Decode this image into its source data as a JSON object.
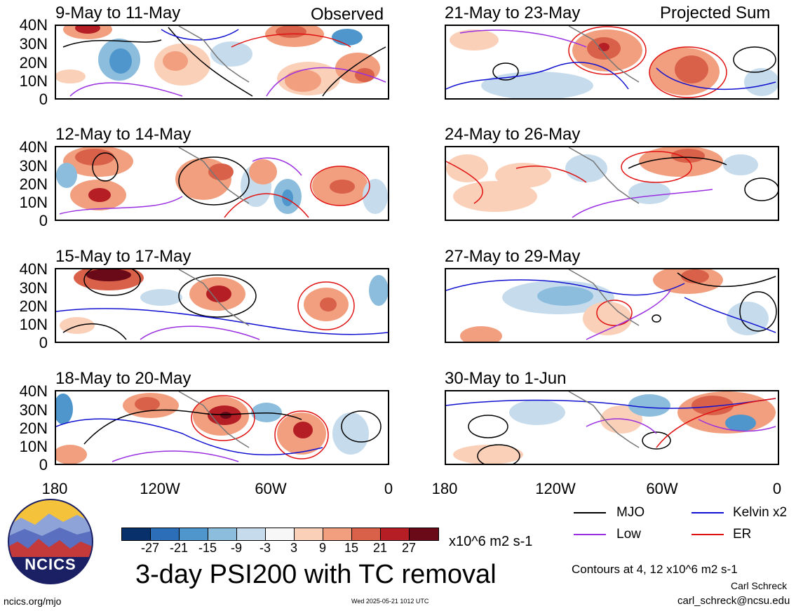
{
  "panels": {
    "p0": {
      "title": "9-May to 11-May",
      "tag": "Observed"
    },
    "p1": {
      "title": "12-May to 14-May"
    },
    "p2": {
      "title": "15-May to 17-May"
    },
    "p3": {
      "title": "18-May to 20-May"
    },
    "p4": {
      "title": "21-May to 23-May",
      "tag": "Projected Sum"
    },
    "p5": {
      "title": "24-May to 26-May"
    },
    "p6": {
      "title": "27-May to 29-May"
    },
    "p7": {
      "title": "30-May to 1-Jun"
    }
  },
  "y_axis_labels": [
    "40N",
    "30N",
    "20N",
    "10N",
    "0"
  ],
  "x_axis_labels": [
    "180",
    "120W",
    "60W",
    "0"
  ],
  "legend": {
    "mjo": {
      "label": "MJO",
      "color": "#000000"
    },
    "kelvin": {
      "label": "Kelvin x2",
      "color": "#1010d0"
    },
    "low": {
      "label": "Low",
      "color": "#9a2fe0"
    },
    "er": {
      "label": "ER",
      "color": "#e01010"
    }
  },
  "colorbar": {
    "ticks": [
      "-27",
      "-21",
      "-15",
      "-9",
      "-3",
      "3",
      "9",
      "15",
      "21",
      "27"
    ],
    "units": "x10^6 m2 s-1",
    "colors": [
      "#08306b",
      "#2c6fb8",
      "#4f96cc",
      "#8cbddd",
      "#c6dced",
      "#f7f7f7",
      "#fbd0b8",
      "#f29f7f",
      "#d9614a",
      "#b51e24",
      "#6a0a18"
    ]
  },
  "main_title": "3-day PSI200 with TC removal",
  "contour_note": "Contours at 4, 12 x10^6 m2 s-1",
  "author": "Carl Schreck",
  "email": "carl_schreck@ncsu.edu",
  "url": "ncics.org/mjo",
  "timestamp": "Wed 2025-05-21 1012 UTC",
  "logo_text": "NCICS"
}
